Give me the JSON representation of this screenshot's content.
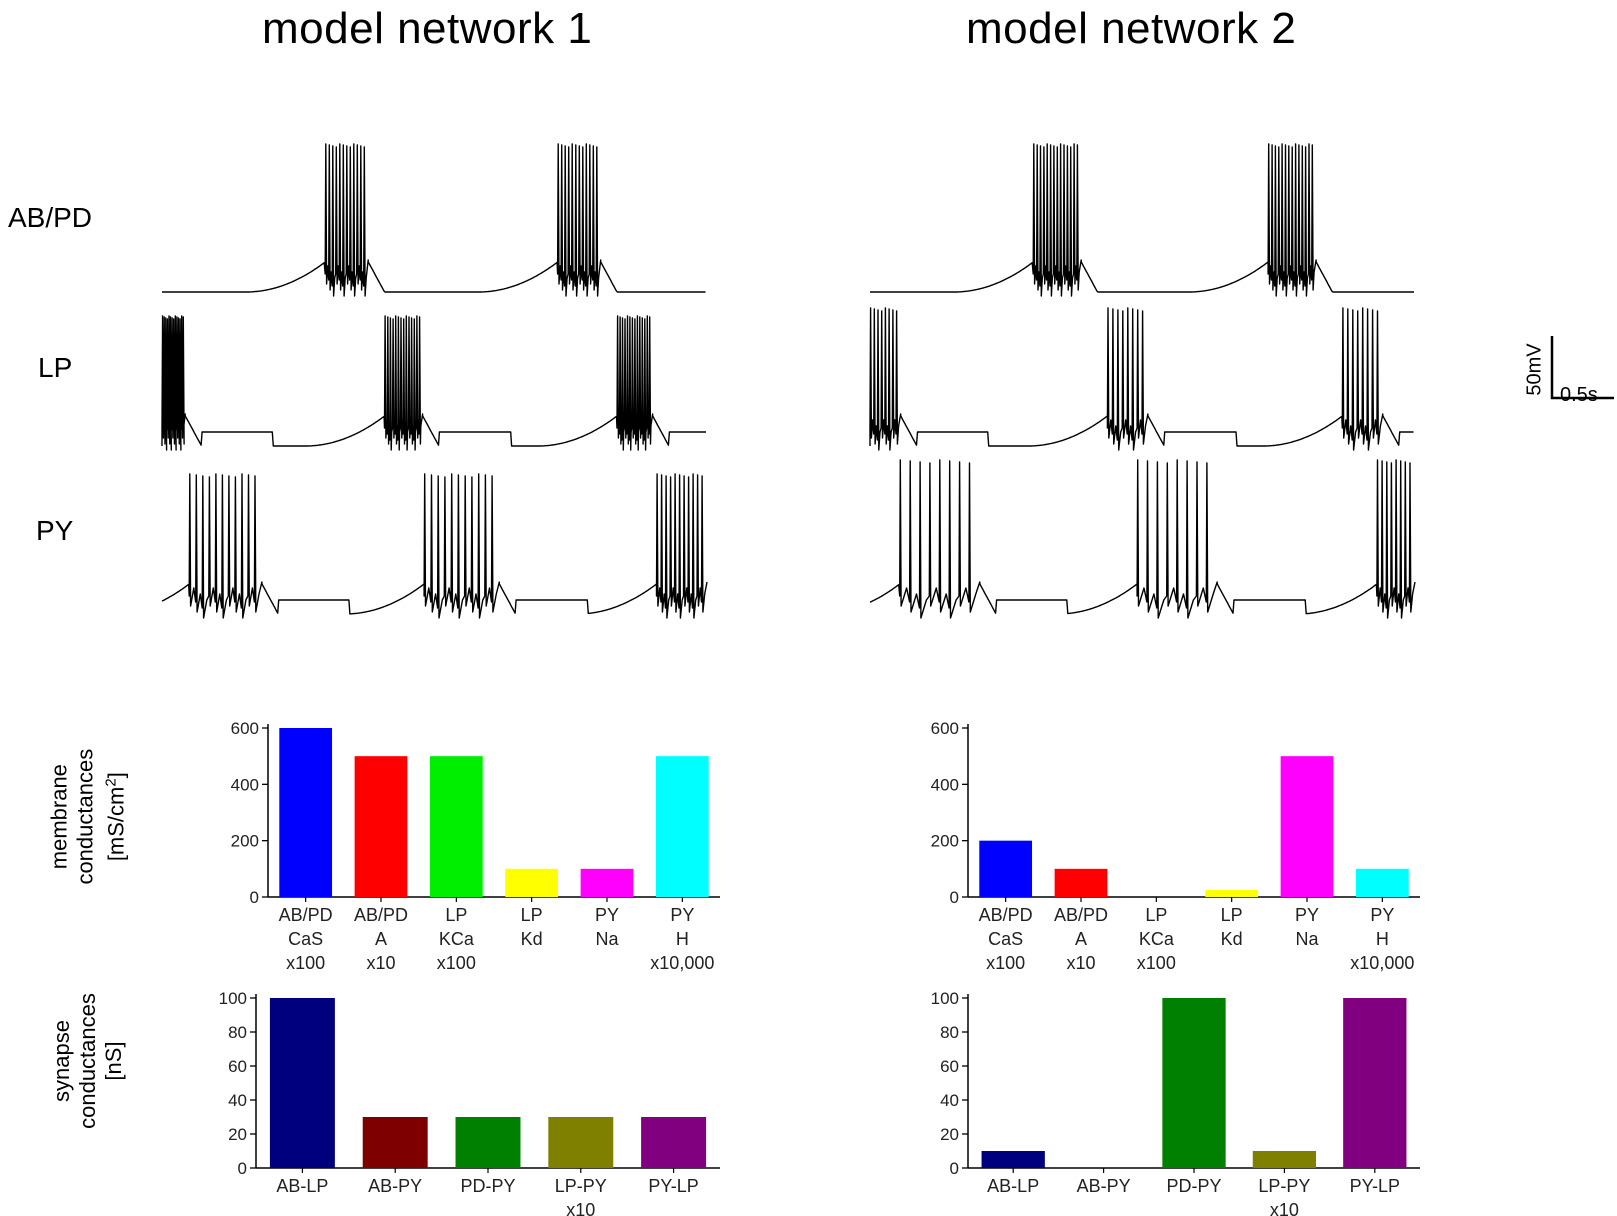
{
  "titles": {
    "left": "model network 1",
    "right": "model network 2"
  },
  "trace_labels": {
    "abpd": "AB/PD",
    "lp": "LP",
    "py": "PY"
  },
  "scale_bar": {
    "voltage": "50mV",
    "time": "0.5s"
  },
  "y_labels": {
    "membrane_line1": "membrane",
    "membrane_line2": "conductances",
    "membrane_unit_a": "[mS/cm",
    "membrane_unit_sup": "2",
    "membrane_unit_b": "]",
    "synapse_line1": "synapse",
    "synapse_line2": "conductances",
    "synapse_unit": "[nS]"
  },
  "chart_data": [
    {
      "type": "bar",
      "panel": "model network 1 membrane conductances",
      "categories": [
        [
          "AB/PD",
          "CaS",
          "x100"
        ],
        [
          "AB/PD",
          "A",
          "x10"
        ],
        [
          "LP",
          "KCa",
          "x100"
        ],
        [
          "LP",
          "Kd",
          ""
        ],
        [
          "PY",
          "Na",
          ""
        ],
        [
          "PY",
          "H",
          "x10,000"
        ]
      ],
      "values": [
        600,
        500,
        500,
        100,
        100,
        500
      ],
      "colors": [
        "#0000ff",
        "#ff0000",
        "#00ee00",
        "#ffff00",
        "#ff00ff",
        "#00ffff"
      ],
      "ylim": [
        0,
        600
      ],
      "yticks": [
        0,
        200,
        400,
        600
      ]
    },
    {
      "type": "bar",
      "panel": "model network 2 membrane conductances",
      "categories": [
        [
          "AB/PD",
          "CaS",
          "x100"
        ],
        [
          "AB/PD",
          "A",
          "x10"
        ],
        [
          "LP",
          "KCa",
          "x100"
        ],
        [
          "LP",
          "Kd",
          ""
        ],
        [
          "PY",
          "Na",
          ""
        ],
        [
          "PY",
          "H",
          "x10,000"
        ]
      ],
      "values": [
        200,
        100,
        0,
        25,
        500,
        100
      ],
      "colors": [
        "#0000ff",
        "#ff0000",
        "#00ee00",
        "#ffff00",
        "#ff00ff",
        "#00ffff"
      ],
      "ylim": [
        0,
        600
      ],
      "yticks": [
        0,
        200,
        400,
        600
      ]
    },
    {
      "type": "bar",
      "panel": "model network 1 synapse conductances",
      "categories": [
        [
          "AB-LP",
          ""
        ],
        [
          "AB-PY",
          ""
        ],
        [
          "PD-PY",
          ""
        ],
        [
          "LP-PY",
          "x10"
        ],
        [
          "PY-LP",
          ""
        ]
      ],
      "values": [
        100,
        30,
        30,
        30,
        30
      ],
      "colors": [
        "#00007f",
        "#7f0000",
        "#008000",
        "#808000",
        "#800080"
      ],
      "ylim": [
        0,
        100
      ],
      "yticks": [
        0,
        20,
        40,
        60,
        80,
        100
      ]
    },
    {
      "type": "bar",
      "panel": "model network 2 synapse conductances",
      "categories": [
        [
          "AB-LP",
          ""
        ],
        [
          "AB-PY",
          ""
        ],
        [
          "PD-PY",
          ""
        ],
        [
          "LP-PY",
          "x10"
        ],
        [
          "PY-LP",
          ""
        ]
      ],
      "values": [
        10,
        0,
        100,
        10,
        100
      ],
      "colors": [
        "#00007f",
        "#7f0000",
        "#008000",
        "#808000",
        "#800080"
      ],
      "ylim": [
        0,
        100
      ],
      "yticks": [
        0,
        20,
        40,
        60,
        80,
        100
      ]
    }
  ],
  "traces": {
    "net1": {
      "abpd": {
        "bursts": [
          [
            3.3,
            0.85
          ],
          [
            8.0,
            0.85
          ]
        ],
        "spikes": 12,
        "t_end": 11.0,
        "hyper_after": false
      },
      "lp": {
        "bursts": [
          [
            0.0,
            0.45
          ],
          [
            4.5,
            0.75
          ],
          [
            9.2,
            0.7
          ]
        ],
        "spikes": 14,
        "t_end": 11.0,
        "hyper_after": true
      },
      "py": {
        "bursts": [
          [
            0.55,
            1.45
          ],
          [
            5.3,
            1.5
          ],
          [
            10.0,
            1.0
          ]
        ],
        "spikes": 11,
        "t_end": 11.0,
        "hyper_after": true
      }
    },
    "net2": {
      "abpd": {
        "bursts": [
          [
            3.3,
            0.95
          ],
          [
            8.05,
            0.95
          ]
        ],
        "spikes": 14,
        "t_end": 11.0,
        "hyper_after": false
      },
      "lp": {
        "bursts": [
          [
            0.0,
            0.6
          ],
          [
            4.8,
            0.8
          ],
          [
            9.55,
            0.8
          ]
        ],
        "spikes": 8,
        "t_end": 11.0,
        "hyper_after": true
      },
      "py": {
        "bursts": [
          [
            0.6,
            1.6
          ],
          [
            5.4,
            1.6
          ],
          [
            10.25,
            0.75
          ]
        ],
        "spikes": 8,
        "t_end": 11.0,
        "hyper_after": true
      }
    }
  }
}
